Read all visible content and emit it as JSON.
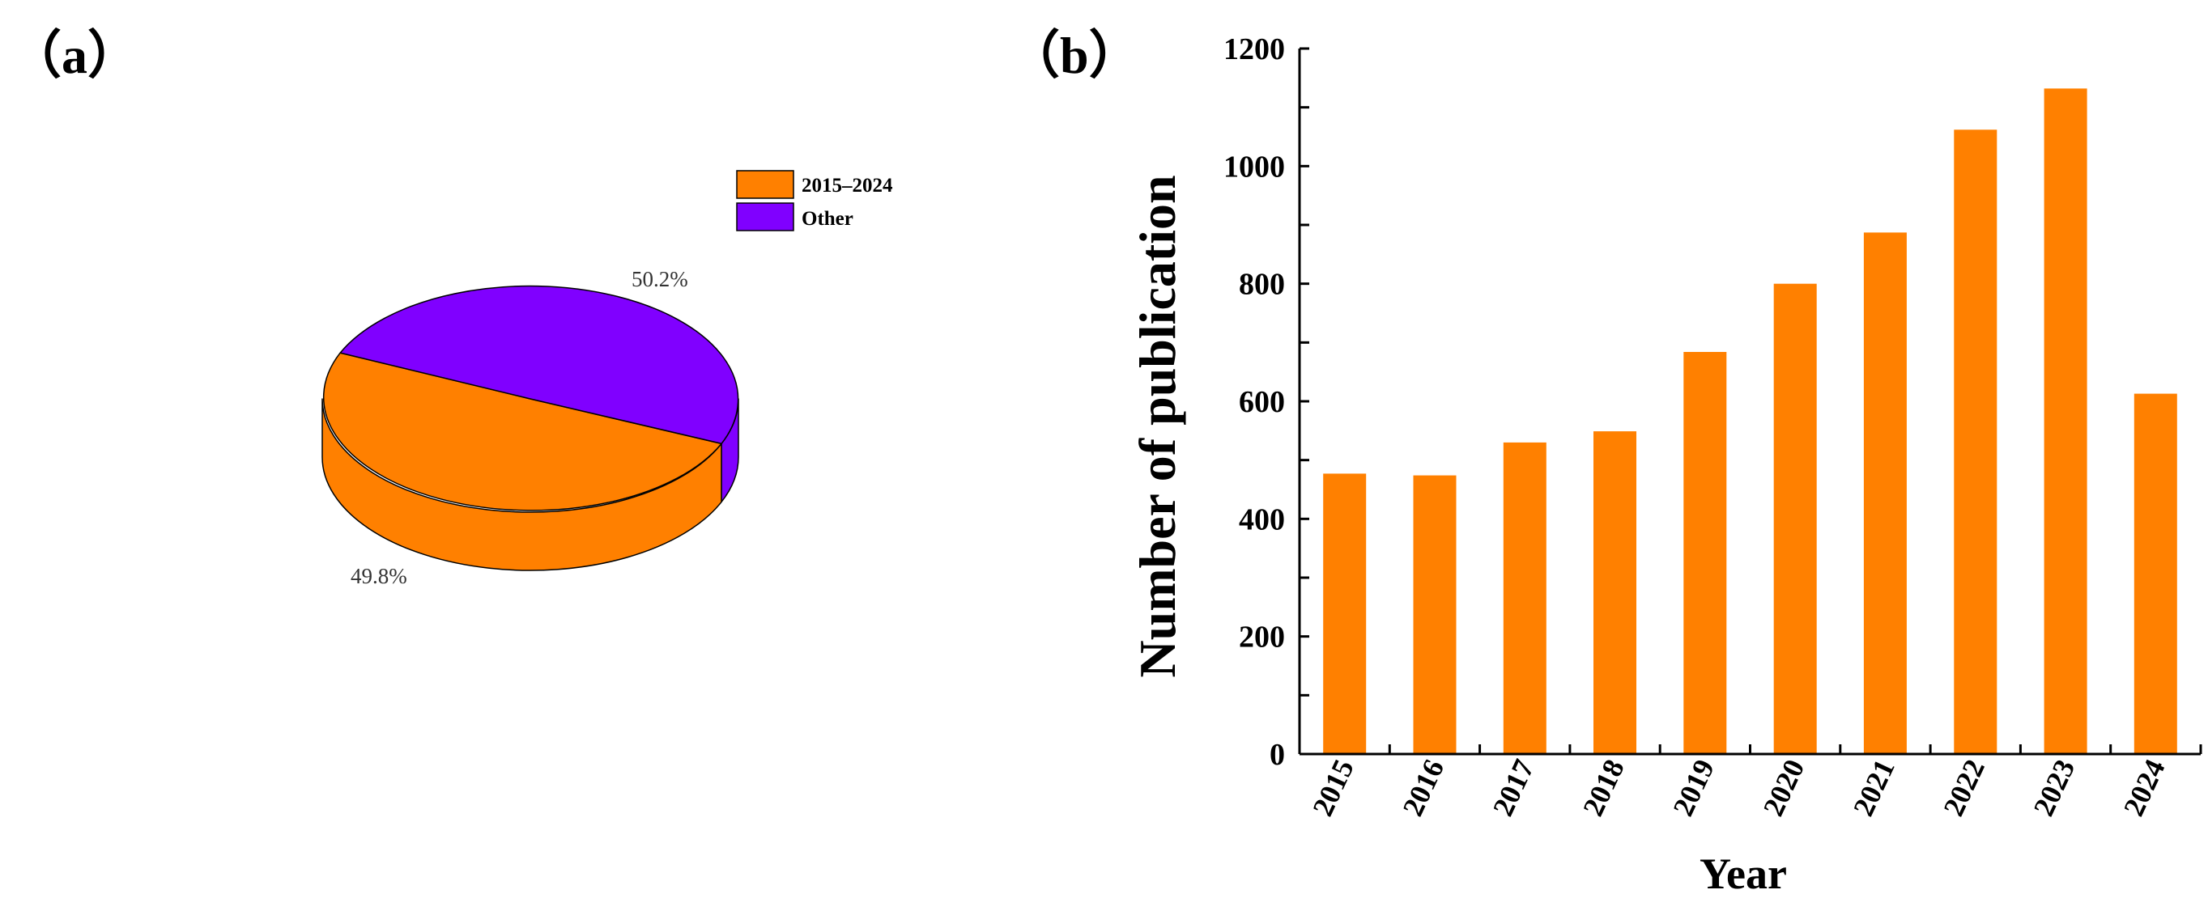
{
  "colors": {
    "orange": "#FF8000",
    "purple": "#8000FF",
    "axis": "#000000"
  },
  "chart_data": [
    {
      "panel_label": "（a）",
      "type": "pie",
      "style": "3d",
      "legend_position": "top-right",
      "legend": [
        "2015–2024",
        "Other"
      ],
      "slices": [
        {
          "label": "2015–2024",
          "value": 49.8,
          "value_label": "49.8%",
          "color": "#FF8000"
        },
        {
          "label": "Other",
          "value": 50.2,
          "value_label": "50.2%",
          "color": "#8000FF"
        }
      ]
    },
    {
      "panel_label": "（b）",
      "type": "bar",
      "categories": [
        "2015",
        "2016",
        "2017",
        "2018",
        "2019",
        "2020",
        "2021",
        "2022",
        "2023",
        "2024"
      ],
      "values": [
        477,
        474,
        530,
        549,
        684,
        800,
        887,
        1062,
        1132,
        613
      ],
      "xlabel": "Year",
      "ylabel": "Number of publication",
      "ylim": [
        0,
        1200
      ],
      "yticks": [
        0,
        200,
        400,
        600,
        800,
        1000,
        1200
      ],
      "grid": false,
      "bar_color": "#FF8000"
    }
  ]
}
